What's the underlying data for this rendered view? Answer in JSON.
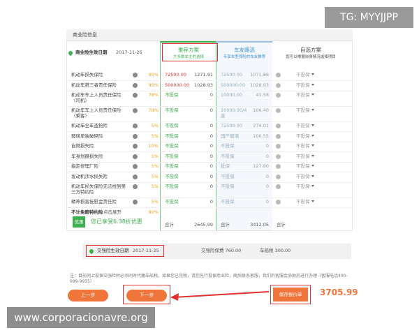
{
  "watermark_top": "TG: MYYJJPP",
  "section_title": "商业险信息",
  "commercial_start": {
    "label": "商业险生效日期",
    "date": "2017-11-25"
  },
  "plans": [
    {
      "title": "推荐方案",
      "subtitle": "大多数车主的选择"
    },
    {
      "title": "车友路选",
      "subtitle": "专享车型保险的车友推荐"
    },
    {
      "title": "自选方案",
      "subtitle": "您可以根据自身情况选择项目"
    }
  ],
  "rows": [
    [
      "机动车损失保险",
      "90%",
      "72500.00",
      "1271.91",
      "72500.00",
      "1071.86",
      "不投保"
    ],
    [
      "机动车第三者责任保险",
      "95%",
      "500000.00",
      "1028.93",
      "500000.00",
      "1028.93",
      "不投保"
    ],
    [
      "机动车车上人员责任保险（司机）",
      "78%",
      "不投保",
      "0",
      "10000.00",
      "41.58",
      "不投保"
    ],
    [
      "机动车车上人员责任保险（乘客）",
      "78%",
      "不投保",
      "0",
      "10000.00/4座",
      "106.40",
      "不投保"
    ],
    [
      "机动车全车盗抢险",
      "5%",
      "不投保",
      "0",
      "72500.00",
      "274.01",
      "不投保"
    ],
    [
      "玻璃单独破碎险",
      "5%",
      "不投保",
      "0",
      "国产玻璃",
      "100.55",
      "不投保"
    ],
    [
      "自燃损失险",
      "10%",
      "不投保",
      "0",
      "不投保",
      "0",
      "不投保"
    ],
    [
      "车身划痕损失险",
      "5%",
      "不投保",
      "0",
      "不投保",
      "0",
      "不投保"
    ],
    [
      "指定修理厂险",
      "5%",
      "不投保",
      "0",
      "投保",
      "127.80",
      "不投保"
    ],
    [
      "发动机涉水损失险",
      "5%",
      "不投保",
      "0",
      "不投保",
      "0",
      "不投保"
    ],
    [
      "机动车损失保险无法找到第三方特约险",
      "5%",
      "不投保",
      "0",
      "不投保",
      "0",
      "不投保"
    ],
    [
      "精神损害抚慰金责任险",
      "5%",
      "不投保",
      "0",
      "不投保",
      "0",
      "不投保"
    ]
  ],
  "expand_row": {
    "name": "不计免赔特约险",
    "action": "点击展开",
    "rate": "90%"
  },
  "discount": {
    "badge": "优惠",
    "text": "您已享受6.38折优惠"
  },
  "totals": [
    {
      "label": "合计",
      "value": "2645.99"
    },
    {
      "label": "合计",
      "value": "3412.05"
    },
    {
      "label": "合计"
    }
  ],
  "compulsory": {
    "label": "交强险生效日期",
    "date": "2017-11-25",
    "premium": "交强险保费 760.00",
    "tax": "车船税 300.00"
  },
  "note": "注：目前网上投保交强险时必须同时代缴车船税。如果您已完税，请您先行投保商业险，随后联系客服，我们的客服会协助您进行办理（客服电话400-999-9955）",
  "buttons": {
    "prev": "上一步",
    "next": "下一步",
    "save": "保存报价单"
  },
  "total_price": "3705.99",
  "watermark_bottom": "www.corporacionavre.org"
}
